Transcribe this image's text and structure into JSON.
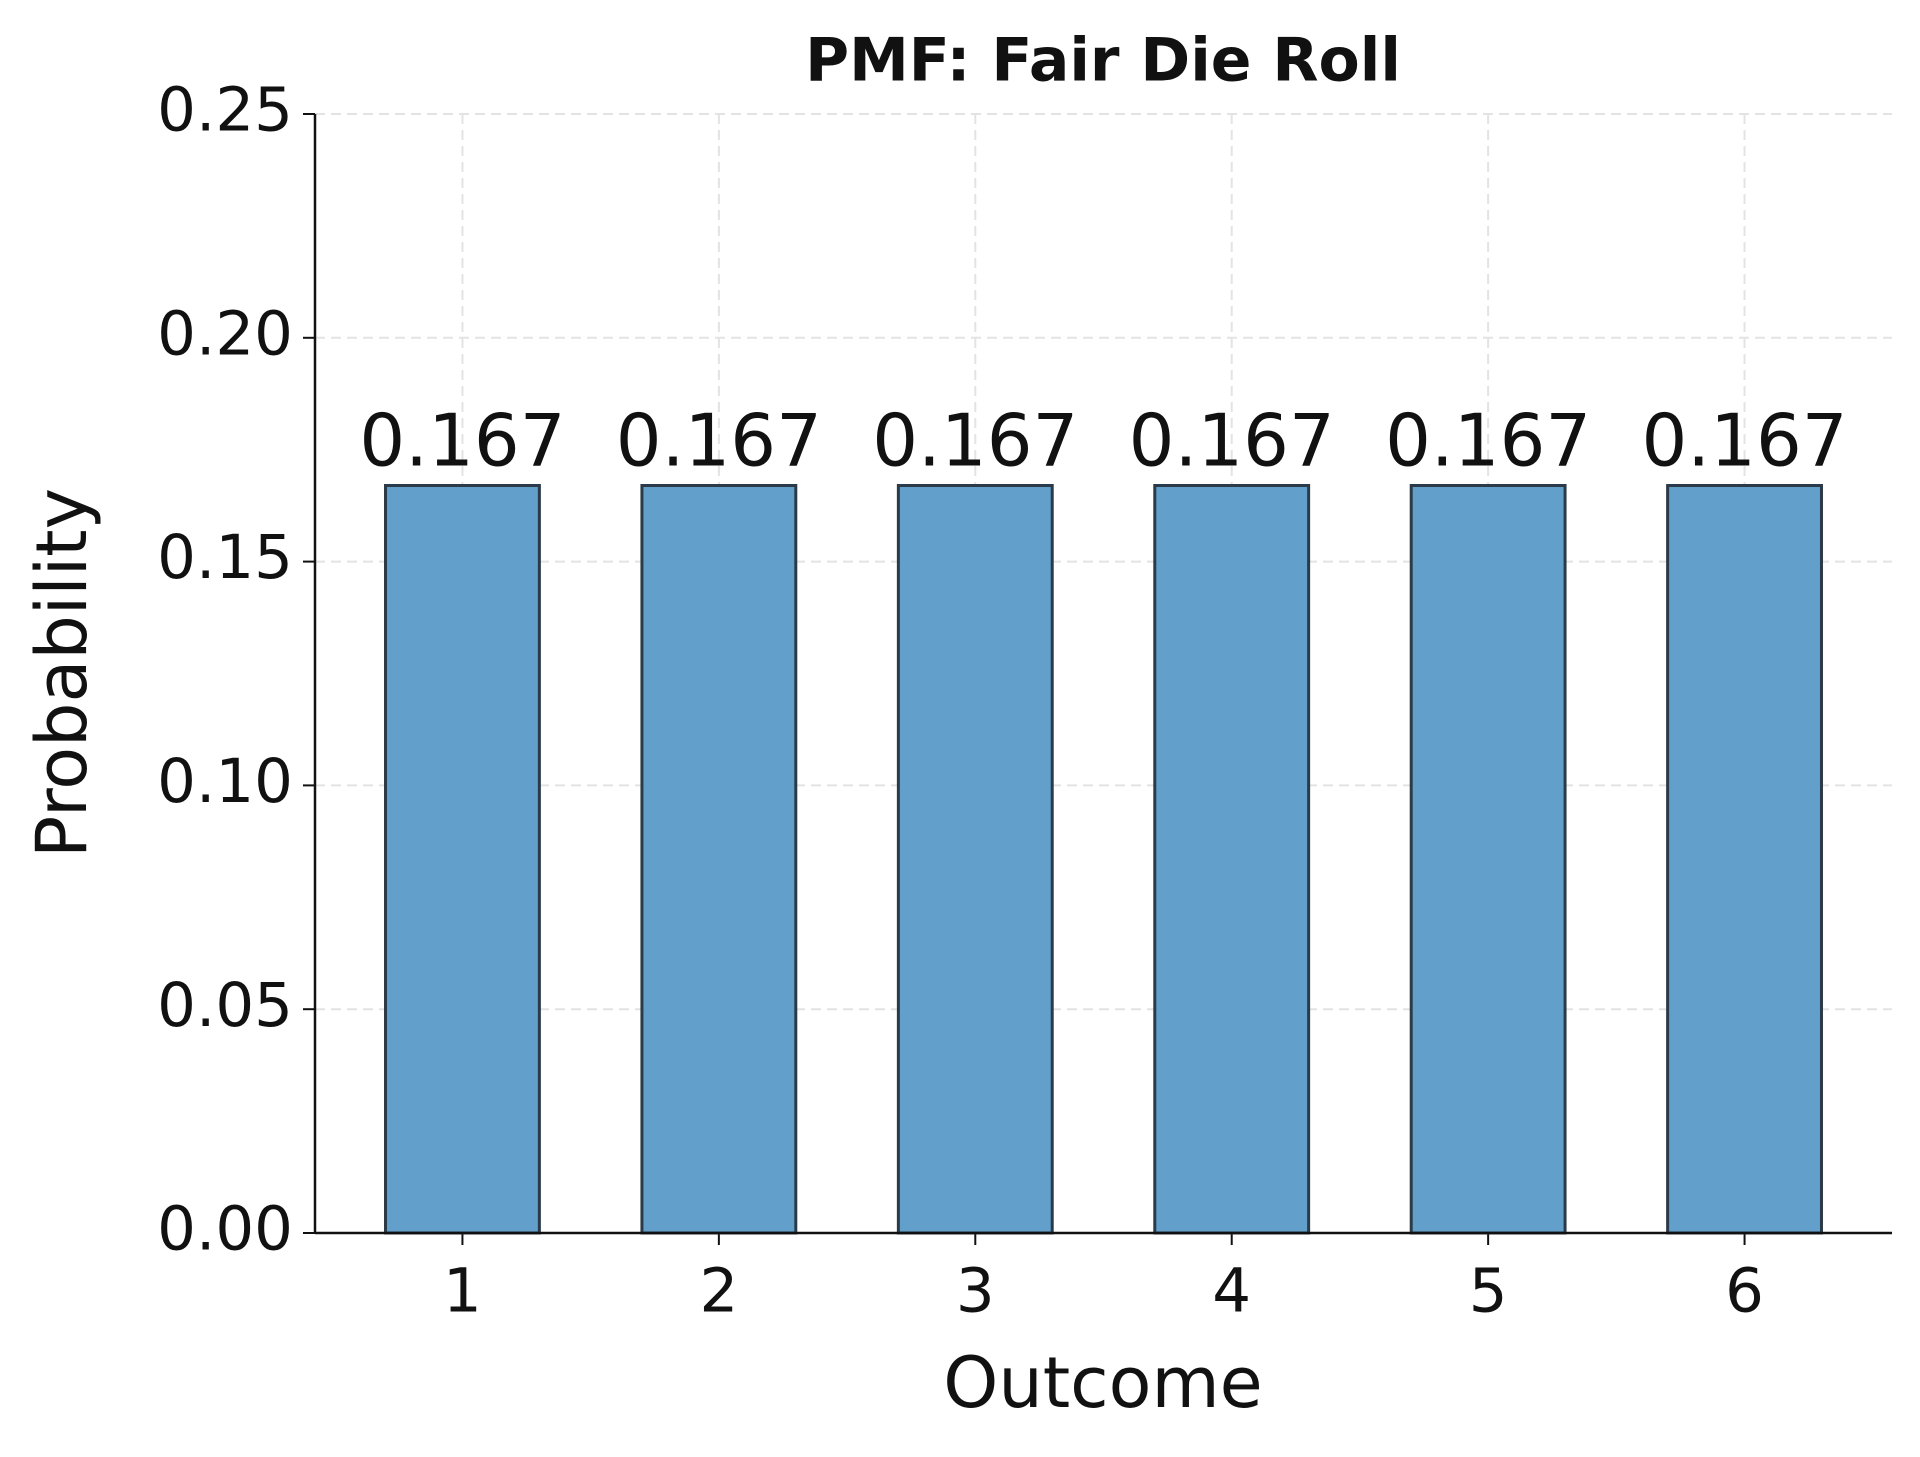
{
  "chart_data": {
    "type": "bar",
    "title": "PMF: Fair Die Roll",
    "x_label": "Outcome",
    "y_label": "Probability",
    "x": [
      1,
      2,
      3,
      4,
      5,
      6
    ],
    "values": [
      0.167,
      0.167,
      0.167,
      0.167,
      0.167,
      0.167
    ],
    "color": "#629fca",
    "edgecolor": "#2b3a48",
    "xlim": [
      0.425,
      6.575
    ],
    "xticks": [
      1,
      2,
      3,
      4,
      5,
      6
    ],
    "ylim": [
      0,
      0.25
    ],
    "yticks": [
      {
        "value": 0,
        "label": "0.00"
      },
      0.05,
      {
        "value": 0.1,
        "label": "0.10"
      },
      0.15,
      {
        "value": 0.2,
        "label": "0.20"
      },
      0.25
    ],
    "grid": true
  }
}
